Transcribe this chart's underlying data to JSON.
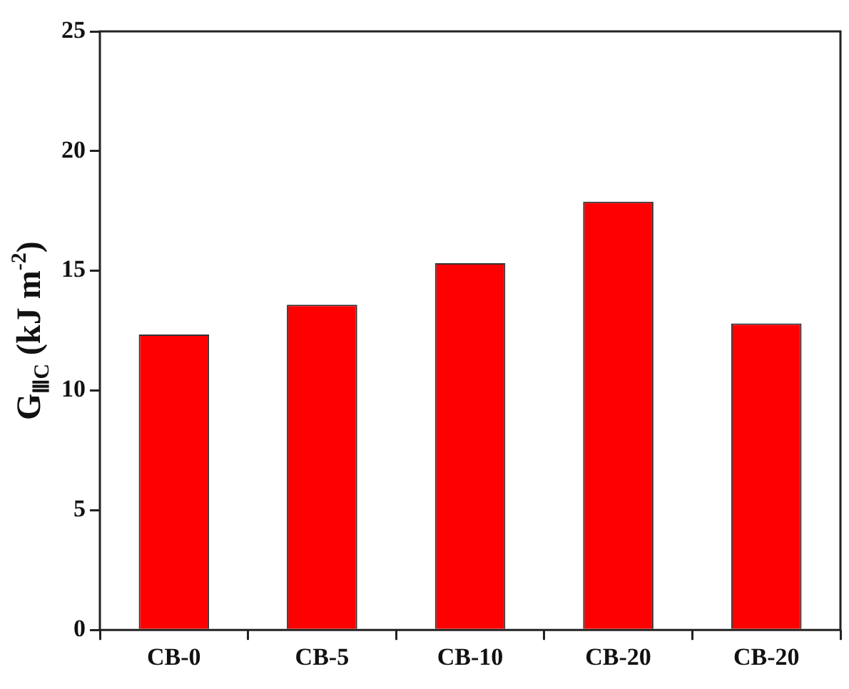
{
  "chart_data": {
    "type": "bar",
    "ylabel": "G$_{ⅢC}$ (kJ m$^{-2}$)",
    "categories": [
      "CB-0",
      "CB-5",
      "CB-10",
      "CB-20",
      "CB-20"
    ],
    "values": [
      12.34,
      13.58,
      15.32,
      17.89,
      12.8
    ],
    "color": "#ff0000",
    "ylim": [
      0,
      25
    ],
    "yticks": [
      0,
      5,
      10,
      15,
      20,
      25
    ],
    "grid": false,
    "legend": false
  }
}
